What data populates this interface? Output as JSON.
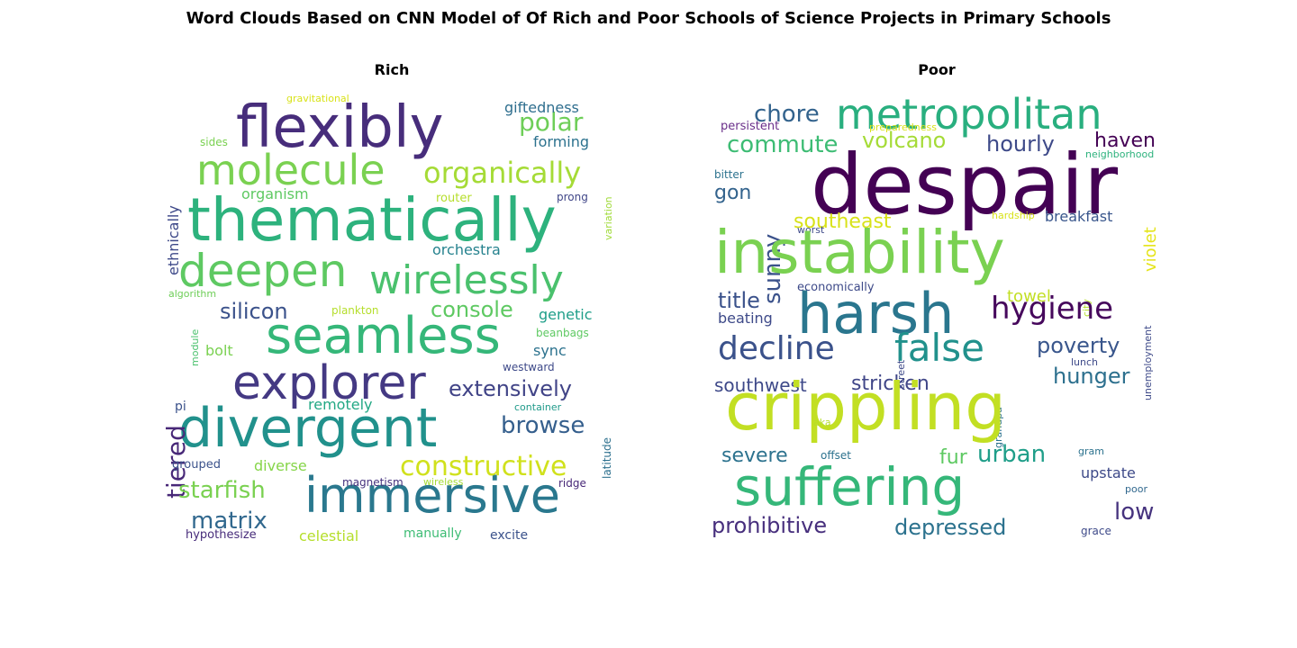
{
  "figure": {
    "title": "Word Clouds Based on CNN Model of Of Rich and Poor Schools of Science Projects in Primary Schools"
  },
  "panels": [
    {
      "title": "Rich",
      "words": [
        {
          "text": "flexibly",
          "color": "#472d7b"
        },
        {
          "text": "thematically",
          "color": "#2db27d"
        },
        {
          "text": "molecule",
          "color": "#7ad151"
        },
        {
          "text": "organically",
          "color": "#a5db36"
        },
        {
          "text": "deepen",
          "color": "#5ec962"
        },
        {
          "text": "wirelessly",
          "color": "#4ac16d"
        },
        {
          "text": "seamless",
          "color": "#35b779"
        },
        {
          "text": "explorer",
          "color": "#443983"
        },
        {
          "text": "divergent",
          "color": "#21918c"
        },
        {
          "text": "immersive",
          "color": "#2a788e"
        },
        {
          "text": "polar",
          "color": "#6ece58"
        },
        {
          "text": "silicon",
          "color": "#3b528b"
        },
        {
          "text": "console",
          "color": "#5ec962"
        },
        {
          "text": "extensively",
          "color": "#414487"
        },
        {
          "text": "browse",
          "color": "#355f8d"
        },
        {
          "text": "constructive",
          "color": "#d0e11c"
        },
        {
          "text": "tiered",
          "color": "#482878"
        },
        {
          "text": "starfish",
          "color": "#7ad151"
        },
        {
          "text": "matrix",
          "color": "#31688e"
        },
        {
          "text": "giftedness",
          "color": "#2e6e8e"
        },
        {
          "text": "forming",
          "color": "#2c728e"
        },
        {
          "text": "ethnically",
          "color": "#3e4989"
        },
        {
          "text": "organism",
          "color": "#5ec962"
        },
        {
          "text": "orchestra",
          "color": "#26828e"
        },
        {
          "text": "genetic",
          "color": "#1f9e89"
        },
        {
          "text": "bolt",
          "color": "#7ad151"
        },
        {
          "text": "remotely",
          "color": "#22a884"
        },
        {
          "text": "sync",
          "color": "#2c728e"
        },
        {
          "text": "diverse",
          "color": "#86d549"
        },
        {
          "text": "router",
          "color": "#b5de2b"
        },
        {
          "text": "prong",
          "color": "#404688"
        },
        {
          "text": "sides",
          "color": "#7ad151"
        },
        {
          "text": "gravitational",
          "color": "#d8e219"
        },
        {
          "text": "variation",
          "color": "#a0da39"
        },
        {
          "text": "algorithm",
          "color": "#6ece58"
        },
        {
          "text": "plankton",
          "color": "#b5de2b"
        },
        {
          "text": "beanbags",
          "color": "#5ec962"
        },
        {
          "text": "module",
          "color": "#4ac16d"
        },
        {
          "text": "westward",
          "color": "#3e4a89"
        },
        {
          "text": "pi",
          "color": "#3b528b"
        },
        {
          "text": "container",
          "color": "#1f9a8a"
        },
        {
          "text": "latitude",
          "color": "#2d708e"
        },
        {
          "text": "grouped",
          "color": "#3b528b"
        },
        {
          "text": "magnetism",
          "color": "#46327e"
        },
        {
          "text": "wireless",
          "color": "#a5db36"
        },
        {
          "text": "ridge",
          "color": "#482878"
        },
        {
          "text": "hypothesize",
          "color": "#472c7a"
        },
        {
          "text": "celestial",
          "color": "#b5de2b"
        },
        {
          "text": "manually",
          "color": "#3dbc74"
        },
        {
          "text": "excite",
          "color": "#3b528b"
        }
      ]
    },
    {
      "title": "Poor",
      "words": [
        {
          "text": "metropolitan",
          "color": "#29af7f"
        },
        {
          "text": "chore",
          "color": "#33638d"
        },
        {
          "text": "persistent",
          "color": "#6a2f8a"
        },
        {
          "text": "commute",
          "color": "#3dbc74"
        },
        {
          "text": "volcano",
          "color": "#a5db36"
        },
        {
          "text": "hourly",
          "color": "#3e4a89"
        },
        {
          "text": "haven",
          "color": "#440154"
        },
        {
          "text": "despair",
          "color": "#440154"
        },
        {
          "text": "preparedness",
          "color": "#d8e219"
        },
        {
          "text": "neighborhood",
          "color": "#2db27d"
        },
        {
          "text": "bitter",
          "color": "#2c728e"
        },
        {
          "text": "gon",
          "color": "#33638d"
        },
        {
          "text": "sunny",
          "color": "#3b528b"
        },
        {
          "text": "southeast",
          "color": "#d8e219"
        },
        {
          "text": "violet",
          "color": "#e5e419"
        },
        {
          "text": "breakfast",
          "color": "#39568c"
        },
        {
          "text": "hardship",
          "color": "#d8e219"
        },
        {
          "text": "worst",
          "color": "#3e4a89"
        },
        {
          "text": "instability",
          "color": "#7ad151"
        },
        {
          "text": "economically",
          "color": "#3e4a89"
        },
        {
          "text": "city",
          "color": "#b5de2b"
        },
        {
          "text": "title",
          "color": "#3b528b"
        },
        {
          "text": "towel",
          "color": "#c2df23"
        },
        {
          "text": "harsh",
          "color": "#2a768e"
        },
        {
          "text": "hygiene",
          "color": "#46085c"
        },
        {
          "text": "beating",
          "color": "#3e4a89"
        },
        {
          "text": "decline",
          "color": "#3b528b"
        },
        {
          "text": "false",
          "color": "#21918c"
        },
        {
          "text": "poverty",
          "color": "#39568c"
        },
        {
          "text": "street",
          "color": "#3e4a89"
        },
        {
          "text": "unemployment",
          "color": "#3e4a89"
        },
        {
          "text": "southwest",
          "color": "#3e4989"
        },
        {
          "text": "stricken",
          "color": "#404688"
        },
        {
          "text": "hunger",
          "color": "#2d708e"
        },
        {
          "text": "lunch",
          "color": "#3e4a89"
        },
        {
          "text": "grandpa",
          "color": "#2c728e"
        },
        {
          "text": "crippling",
          "color": "#c2df23"
        },
        {
          "text": "aka",
          "color": "#b5de2b"
        },
        {
          "text": "severe",
          "color": "#2c728e"
        },
        {
          "text": "offset",
          "color": "#2c728e"
        },
        {
          "text": "fur",
          "color": "#5ec962"
        },
        {
          "text": "urban",
          "color": "#1f9e89"
        },
        {
          "text": "gram",
          "color": "#2c728e"
        },
        {
          "text": "upstate",
          "color": "#3e4a89"
        },
        {
          "text": "suffering",
          "color": "#35b779"
        },
        {
          "text": "poor",
          "color": "#31688e"
        },
        {
          "text": "low",
          "color": "#46337e"
        },
        {
          "text": "prohibitive",
          "color": "#472f7d"
        },
        {
          "text": "depressed",
          "color": "#2c728e"
        },
        {
          "text": "grace",
          "color": "#3e4a89"
        }
      ]
    }
  ]
}
